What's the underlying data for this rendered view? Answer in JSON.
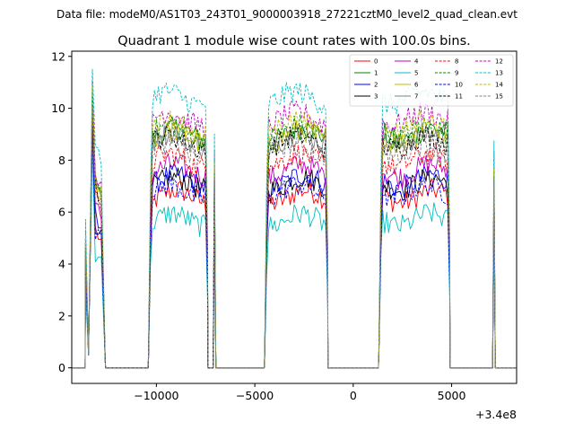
{
  "chart_data": {
    "type": "line",
    "suptitle": "Data file: modeM0/AS1T03_243T01_9000003918_27221cztM0_level2_quad_clean.evt",
    "title": "Quadrant 1 module wise count rates with 100.0s bins.",
    "xlabel": "",
    "ylabel": "",
    "x_offset_label": "+3.4e8",
    "xlim": [
      -14300,
      8300
    ],
    "ylim": [
      -0.6,
      12.2
    ],
    "xticks": [
      -10000,
      -5000,
      0,
      5000
    ],
    "xtick_labels": [
      "−10000",
      "−5000",
      "0",
      "5000"
    ],
    "yticks": [
      0,
      2,
      4,
      6,
      8,
      10,
      12
    ],
    "ytick_labels": [
      "0",
      "2",
      "4",
      "6",
      "8",
      "10",
      "12"
    ],
    "legend_position": "top-right",
    "segments": [
      {
        "start": -13600,
        "end": -12600,
        "shape": "spike"
      },
      {
        "start": -10400,
        "end": -7400,
        "shape": "plateau"
      },
      {
        "start": -7100,
        "end": -7000,
        "shape": "spike"
      },
      {
        "start": -4500,
        "end": -1300,
        "shape": "plateau"
      },
      {
        "start": 1300,
        "end": 4900,
        "shape": "plateau"
      },
      {
        "start": 7100,
        "end": 7200,
        "shape": "spike"
      }
    ],
    "series": [
      {
        "name": "0",
        "color": "#ff0000",
        "dash": "solid",
        "level": 6.6,
        "peak": 9.2
      },
      {
        "name": "1",
        "color": "#008000",
        "dash": "solid",
        "level": 9.0,
        "peak": 10.6
      },
      {
        "name": "2",
        "color": "#0000ff",
        "dash": "solid",
        "level": 7.2,
        "peak": 9.5
      },
      {
        "name": "3",
        "color": "#000000",
        "dash": "solid",
        "level": 7.1,
        "peak": 9.4
      },
      {
        "name": "4",
        "color": "#bf00bf",
        "dash": "solid",
        "level": 7.6,
        "peak": 9.8
      },
      {
        "name": "5",
        "color": "#00bfbf",
        "dash": "solid",
        "level": 5.7,
        "peak": 8.6
      },
      {
        "name": "6",
        "color": "#bfbf00",
        "dash": "solid",
        "level": 8.9,
        "peak": 10.5
      },
      {
        "name": "7",
        "color": "#808080",
        "dash": "solid",
        "level": 8.8,
        "peak": 10.4
      },
      {
        "name": "8",
        "color": "#ff0000",
        "dash": "dashed",
        "level": 8.0,
        "peak": 10.0
      },
      {
        "name": "9",
        "color": "#008000",
        "dash": "dashed",
        "level": 9.1,
        "peak": 10.7
      },
      {
        "name": "10",
        "color": "#0000ff",
        "dash": "dashed",
        "level": 6.8,
        "peak": 9.3
      },
      {
        "name": "11",
        "color": "#000000",
        "dash": "dashed",
        "level": 8.7,
        "peak": 10.3
      },
      {
        "name": "12",
        "color": "#bf00bf",
        "dash": "dashed",
        "level": 9.6,
        "peak": 11.0
      },
      {
        "name": "13",
        "color": "#00bfbf",
        "dash": "dashed",
        "level": 10.4,
        "peak": 11.5
      },
      {
        "name": "14",
        "color": "#bfbf00",
        "dash": "dashed",
        "level": 9.3,
        "peak": 10.9
      },
      {
        "name": "15",
        "color": "#808080",
        "dash": "dashed",
        "level": 8.4,
        "peak": 10.1
      }
    ]
  }
}
